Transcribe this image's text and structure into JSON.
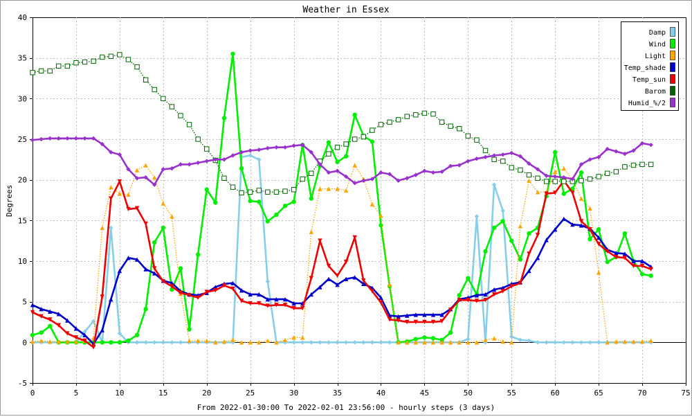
{
  "chart_data": {
    "type": "line",
    "title": "Weather in Essex",
    "xlabel": "From 2022-01-30:00 To 2022-02-01 23:56:00 - hourly steps (3 days)",
    "ylabel": "Degrees",
    "xlim": [
      0,
      75
    ],
    "ylim": [
      -5,
      40
    ],
    "xticks": [
      0,
      5,
      10,
      15,
      20,
      25,
      30,
      35,
      40,
      45,
      50,
      55,
      60,
      65,
      70,
      75
    ],
    "yticks": [
      -5,
      0,
      5,
      10,
      15,
      20,
      25,
      30,
      35,
      40
    ],
    "grid": true,
    "legend_position": "top-right",
    "x": [
      0,
      1,
      2,
      3,
      4,
      5,
      6,
      7,
      8,
      9,
      10,
      11,
      12,
      13,
      14,
      15,
      16,
      17,
      18,
      19,
      20,
      21,
      22,
      23,
      24,
      25,
      26,
      27,
      28,
      29,
      30,
      31,
      32,
      33,
      34,
      35,
      36,
      37,
      38,
      39,
      40,
      41,
      42,
      43,
      44,
      45,
      46,
      47,
      48,
      49,
      50,
      51,
      52,
      53,
      54,
      55,
      56,
      57,
      58,
      59,
      60,
      61,
      62,
      63,
      64,
      65,
      66,
      67,
      68,
      69,
      70,
      71
    ],
    "series": [
      {
        "name": "Damp",
        "color": "#87ceeb",
        "marker": "diamond",
        "style": "solid",
        "values": [
          0,
          0,
          0,
          0,
          0,
          0,
          1.3,
          2.6,
          0,
          14.1,
          1.1,
          0,
          0,
          0,
          0,
          0,
          0,
          0,
          0,
          0,
          0,
          0,
          0,
          0,
          22.8,
          23.0,
          22.5,
          7.5,
          0,
          0,
          0,
          0,
          0,
          0,
          0,
          0,
          0,
          0,
          0,
          0,
          0,
          0,
          0,
          0,
          0,
          0,
          0,
          0,
          0,
          0,
          0.4,
          15.5,
          0,
          19.4,
          16.2,
          0.7,
          0.3,
          0.2,
          0,
          0,
          0,
          0,
          0,
          0,
          0,
          0,
          0,
          0,
          0,
          0,
          0,
          0
        ]
      },
      {
        "name": "Wind",
        "color": "#00ee00",
        "marker": "circle",
        "style": "solid",
        "values": [
          0.9,
          1.2,
          2.0,
          0,
          0,
          0,
          0,
          0,
          0,
          0,
          0,
          0.2,
          0.9,
          4.1,
          12.3,
          14.1,
          6.5,
          9.1,
          1.6,
          10.8,
          18.8,
          17.2,
          27.6,
          35.5,
          21.4,
          17.4,
          17.3,
          14.9,
          15.7,
          16.8,
          17.3,
          24.3,
          17.7,
          21.7,
          24.6,
          22.2,
          22.9,
          28.0,
          25.4,
          24.7,
          14.4,
          6.9,
          0,
          0.1,
          0.4,
          0.6,
          0.5,
          0.3,
          1.2,
          5.8,
          7.9,
          5.9,
          11.2,
          14.1,
          14.9,
          12.5,
          10.2,
          13.4,
          14.1,
          18.0,
          23.4,
          18.3,
          18.9,
          20.9,
          12.7,
          13.9,
          9.9,
          10.5,
          13.4,
          10.0,
          8.4,
          8.2
        ]
      },
      {
        "name": "Light",
        "color": "#ffa500",
        "marker": "triangle",
        "style": "dotted",
        "values": [
          0.1,
          0.2,
          0.1,
          0.1,
          0.1,
          0.1,
          0.2,
          0.5,
          14.1,
          19.1,
          18.3,
          18.2,
          21.2,
          21.8,
          20.3,
          17.1,
          15.5,
          6.0,
          0.2,
          0.2,
          0.2,
          0,
          0.1,
          0.3,
          0,
          0,
          0,
          0.2,
          0,
          0.3,
          0.6,
          0.6,
          13.6,
          18.9,
          18.9,
          18.9,
          18.7,
          21.8,
          20.1,
          17.0,
          15.6,
          7.1,
          0,
          0,
          0,
          0,
          0,
          0,
          0,
          0,
          0,
          0,
          0.3,
          0.5,
          0.1,
          0,
          14.3,
          19.9,
          18.5,
          18.5,
          21.0,
          21.4,
          20.0,
          17.7,
          16.5,
          8.6,
          0,
          0.1,
          0.1,
          0.1,
          0.1,
          0.2
        ]
      },
      {
        "name": "Temp_shade",
        "color": "#0000cc",
        "marker": "up-triangle",
        "style": "solid",
        "values": [
          4.6,
          4.1,
          3.8,
          3.5,
          2.7,
          1.7,
          0.9,
          -0.2,
          1.5,
          5.3,
          8.8,
          10.4,
          10.2,
          9.0,
          8.5,
          7.6,
          7.3,
          6.3,
          5.9,
          5.8,
          6.1,
          6.8,
          7.2,
          7.3,
          6.4,
          5.9,
          5.9,
          5.3,
          5.3,
          5.3,
          4.8,
          4.8,
          5.9,
          6.8,
          7.8,
          7.1,
          7.8,
          8.0,
          7.2,
          6.7,
          5.5,
          3.3,
          3.2,
          3.3,
          3.4,
          3.4,
          3.4,
          3.4,
          4.1,
          5.3,
          5.5,
          5.8,
          5.9,
          6.5,
          6.7,
          7.2,
          7.4,
          8.8,
          10.4,
          12.6,
          13.9,
          15.2,
          14.5,
          14.4,
          14.0,
          12.9,
          11.4,
          11.0,
          10.9,
          10.0,
          10.0,
          9.3
        ]
      },
      {
        "name": "Temp_sun",
        "color": "#ee0000",
        "marker": "down-triangle",
        "style": "solid",
        "values": [
          3.7,
          3.2,
          2.8,
          2.1,
          1.1,
          0.6,
          0.2,
          -0.6,
          5.6,
          17.7,
          19.8,
          16.4,
          16.5,
          14.6,
          9.1,
          7.5,
          6.9,
          6.1,
          5.8,
          5.5,
          6.2,
          6.4,
          7.0,
          6.6,
          5.1,
          4.8,
          4.8,
          4.5,
          4.6,
          4.6,
          4.2,
          4.2,
          7.9,
          12.5,
          9.4,
          8.2,
          9.9,
          12.9,
          7.6,
          6.3,
          4.9,
          2.8,
          2.7,
          2.5,
          2.5,
          2.5,
          2.5,
          2.6,
          4.0,
          5.2,
          5.2,
          5.1,
          5.2,
          5.9,
          6.3,
          6.9,
          7.3,
          10.9,
          13.2,
          18.3,
          18.4,
          19.9,
          18.4,
          14.9,
          13.9,
          12.1,
          11.2,
          10.5,
          10.4,
          9.4,
          9.4,
          9.0
        ]
      },
      {
        "name": "Barom",
        "color": "#006400",
        "marker": "square",
        "style": "dotted",
        "values": [
          33.2,
          33.4,
          33.4,
          34.0,
          34.0,
          34.4,
          34.5,
          34.6,
          35.1,
          35.2,
          35.4,
          34.8,
          33.9,
          32.3,
          31.1,
          30.0,
          29.0,
          27.9,
          26.8,
          25.0,
          23.8,
          22.4,
          20.2,
          19.1,
          18.4,
          18.5,
          18.7,
          18.5,
          18.5,
          18.6,
          18.8,
          20.1,
          20.8,
          22.3,
          23.2,
          24.0,
          24.4,
          25.0,
          25.3,
          26.1,
          26.8,
          27.1,
          27.4,
          27.8,
          28.0,
          28.2,
          28.1,
          27.1,
          26.6,
          26.3,
          25.4,
          24.9,
          23.6,
          22.5,
          22.3,
          21.5,
          21.2,
          20.6,
          20.2,
          19.8,
          19.8,
          19.8,
          19.8,
          19.9,
          20.1,
          20.4,
          20.8,
          21.0,
          21.6,
          21.8,
          21.9,
          21.9
        ]
      },
      {
        "name": "Humid_%/2",
        "color": "#9932cc",
        "marker": "diamond",
        "style": "solid",
        "values": [
          24.9,
          25.0,
          25.1,
          25.1,
          25.1,
          25.1,
          25.1,
          25.1,
          24.4,
          23.4,
          23.1,
          21.3,
          20.2,
          20.3,
          19.4,
          21.3,
          21.4,
          21.9,
          21.9,
          22.1,
          22.3,
          22.5,
          22.5,
          23.0,
          23.4,
          23.6,
          23.7,
          23.9,
          24.0,
          24.0,
          24.2,
          24.3,
          23.4,
          21.9,
          20.9,
          21.1,
          20.4,
          19.6,
          19.9,
          20.1,
          20.9,
          20.7,
          19.9,
          20.2,
          20.6,
          21.1,
          20.9,
          21.0,
          21.7,
          21.8,
          22.3,
          22.6,
          22.8,
          23.0,
          23.1,
          23.3,
          22.9,
          22.0,
          21.3,
          20.5,
          20.4,
          20.3,
          20.1,
          21.9,
          22.5,
          22.8,
          23.8,
          23.5,
          23.2,
          23.6,
          24.5,
          24.3
        ]
      }
    ]
  }
}
